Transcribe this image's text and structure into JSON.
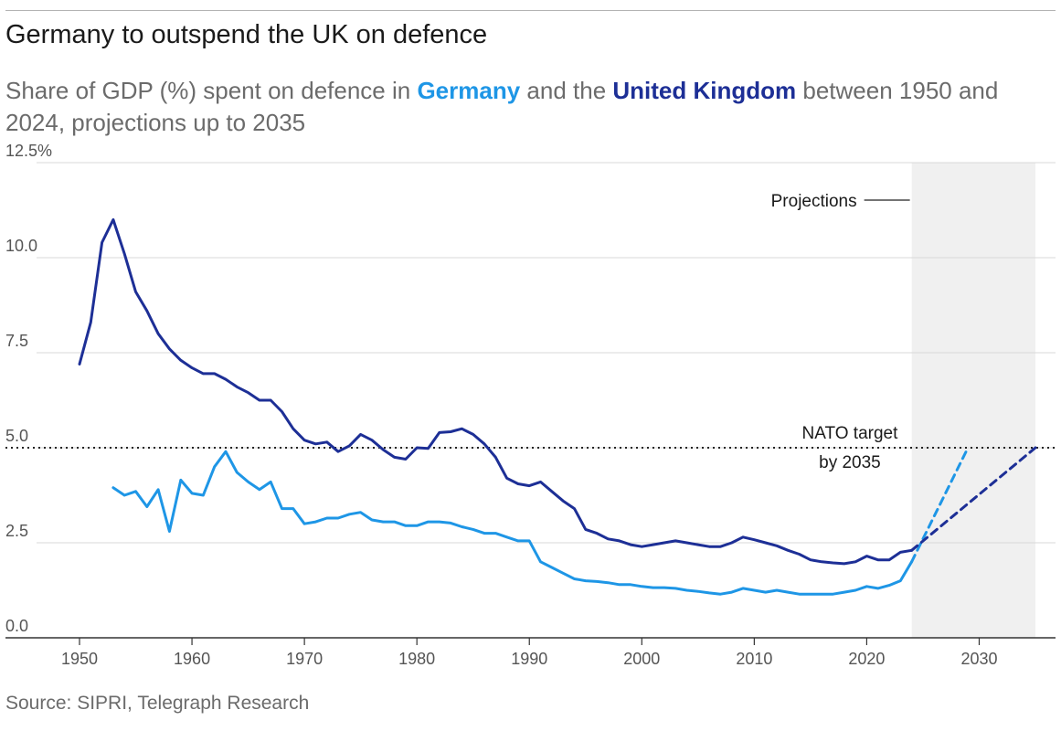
{
  "title": "Germany to outspend the UK on defence",
  "subtitle": {
    "prefix": "Share of GDP (%) spent on defence in ",
    "germany": "Germany",
    "middle": " and the ",
    "uk": "United Kingdom",
    "suffix": " between 1950 and 2024, projections up to 2035"
  },
  "source": "Source: SIPRI, Telegraph Research",
  "colors": {
    "germany": "#1e96e6",
    "uk": "#1d2f96",
    "projection_band": "#f0f0f0",
    "grid": "#d9d9d9"
  },
  "chart_data": {
    "type": "line",
    "xlim": [
      1950,
      2035
    ],
    "ylim": [
      0,
      12.5
    ],
    "x_ticks": [
      1950,
      1960,
      1970,
      1980,
      1990,
      2000,
      2010,
      2020,
      2030
    ],
    "x_tick_labels": [
      "1950",
      "1960",
      "1970",
      "1980",
      "1990",
      "2000",
      "2010",
      "2020",
      "2030"
    ],
    "y_ticks": [
      0,
      2.5,
      5,
      7.5,
      10,
      12.5
    ],
    "y_tick_labels": [
      "0.0",
      "2.5",
      "5.0",
      "7.5",
      "10.0",
      "12.5%"
    ],
    "grid": true,
    "legend": "none",
    "series": [
      {
        "name": "United Kingdom",
        "x": [
          1950,
          1951,
          1952,
          1953,
          1954,
          1955,
          1956,
          1957,
          1958,
          1959,
          1960,
          1961,
          1962,
          1963,
          1964,
          1965,
          1966,
          1967,
          1968,
          1969,
          1970,
          1971,
          1972,
          1973,
          1974,
          1975,
          1976,
          1977,
          1978,
          1979,
          1980,
          1981,
          1982,
          1983,
          1984,
          1985,
          1986,
          1987,
          1988,
          1989,
          1990,
          1991,
          1992,
          1993,
          1994,
          1995,
          1996,
          1997,
          1998,
          1999,
          2000,
          2001,
          2002,
          2003,
          2004,
          2005,
          2006,
          2007,
          2008,
          2009,
          2010,
          2011,
          2012,
          2013,
          2014,
          2015,
          2016,
          2017,
          2018,
          2019,
          2020,
          2021,
          2022,
          2023,
          2024
        ],
        "values": [
          7.2,
          8.3,
          10.4,
          11.0,
          10.1,
          9.1,
          8.6,
          8.0,
          7.6,
          7.3,
          7.1,
          6.95,
          6.95,
          6.8,
          6.6,
          6.45,
          6.25,
          6.25,
          5.95,
          5.5,
          5.2,
          5.1,
          5.15,
          4.9,
          5.05,
          5.35,
          5.2,
          4.95,
          4.75,
          4.7,
          5.0,
          4.98,
          5.4,
          5.42,
          5.5,
          5.35,
          5.1,
          4.75,
          4.2,
          4.05,
          4.0,
          4.1,
          3.85,
          3.6,
          3.4,
          2.85,
          2.75,
          2.6,
          2.55,
          2.45,
          2.4,
          2.45,
          2.5,
          2.55,
          2.5,
          2.45,
          2.4,
          2.4,
          2.5,
          2.65,
          2.58,
          2.5,
          2.42,
          2.3,
          2.2,
          2.05,
          2.0,
          1.97,
          1.95,
          2.0,
          2.15,
          2.05,
          2.05,
          2.25,
          2.3
        ]
      },
      {
        "name": "Germany",
        "x": [
          1953,
          1954,
          1955,
          1956,
          1957,
          1958,
          1959,
          1960,
          1961,
          1962,
          1963,
          1964,
          1965,
          1966,
          1967,
          1968,
          1969,
          1970,
          1971,
          1972,
          1973,
          1974,
          1975,
          1976,
          1977,
          1978,
          1979,
          1980,
          1981,
          1982,
          1983,
          1984,
          1985,
          1986,
          1987,
          1988,
          1989,
          1990,
          1991,
          1992,
          1993,
          1994,
          1995,
          1996,
          1997,
          1998,
          1999,
          2000,
          2001,
          2002,
          2003,
          2004,
          2005,
          2006,
          2007,
          2008,
          2009,
          2010,
          2011,
          2012,
          2013,
          2014,
          2015,
          2016,
          2017,
          2018,
          2019,
          2020,
          2021,
          2022,
          2023,
          2024
        ],
        "values": [
          3.95,
          3.75,
          3.85,
          3.45,
          3.9,
          2.8,
          4.15,
          3.8,
          3.75,
          4.5,
          4.9,
          4.35,
          4.1,
          3.9,
          4.1,
          3.4,
          3.4,
          3.0,
          3.05,
          3.15,
          3.15,
          3.25,
          3.3,
          3.1,
          3.05,
          3.05,
          2.95,
          2.95,
          3.05,
          3.05,
          3.02,
          2.92,
          2.85,
          2.75,
          2.75,
          2.65,
          2.55,
          2.55,
          2.0,
          1.85,
          1.7,
          1.55,
          1.5,
          1.48,
          1.45,
          1.4,
          1.4,
          1.35,
          1.32,
          1.32,
          1.3,
          1.25,
          1.22,
          1.18,
          1.15,
          1.2,
          1.3,
          1.25,
          1.2,
          1.25,
          1.2,
          1.15,
          1.15,
          1.15,
          1.15,
          1.2,
          1.25,
          1.35,
          1.3,
          1.38,
          1.5,
          2.0
        ]
      },
      {
        "name": "Germany projection",
        "x": [
          2024,
          2029
        ],
        "values": [
          2.0,
          5.0
        ]
      },
      {
        "name": "United Kingdom projection",
        "x": [
          2024,
          2035
        ],
        "values": [
          2.3,
          5.0
        ]
      }
    ],
    "reference_line": {
      "y": 5.0,
      "label_line1": "NATO target",
      "label_line2": "by 2035"
    },
    "projection_range": [
      2024,
      2035
    ],
    "projection_label": "Projections"
  }
}
